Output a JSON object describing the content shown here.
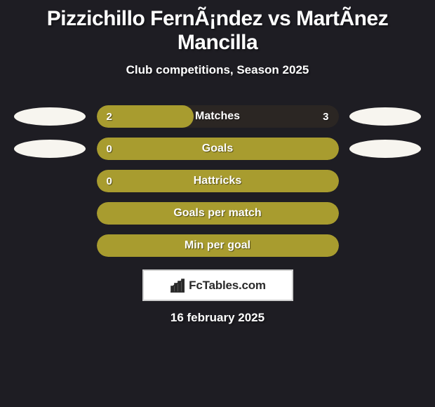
{
  "background_color": "#1e1d23",
  "text_color": "#ffffff",
  "title": "Pizzichillo FernÃ¡ndez vs MartÃ­nez Mancilla",
  "subtitle": "Club competitions, Season 2025",
  "accent_color": "#a89c2f",
  "bar_track_color": "#2b2623",
  "ellipse_color": "#f7f5ef",
  "border_color": "#cfcfcf",
  "bars": [
    {
      "label": "Matches",
      "left_value": "2",
      "right_value": "3",
      "fill_fraction": 0.4,
      "show_left_ellipse": true,
      "show_right_ellipse": true
    },
    {
      "label": "Goals",
      "left_value": "0",
      "right_value": "",
      "fill_fraction": 1.0,
      "show_left_ellipse": true,
      "show_right_ellipse": true
    },
    {
      "label": "Hattricks",
      "left_value": "0",
      "right_value": "",
      "fill_fraction": 1.0,
      "show_left_ellipse": false,
      "show_right_ellipse": false
    },
    {
      "label": "Goals per match",
      "left_value": "",
      "right_value": "",
      "fill_fraction": 1.0,
      "show_left_ellipse": false,
      "show_right_ellipse": false
    },
    {
      "label": "Min per goal",
      "left_value": "",
      "right_value": "",
      "fill_fraction": 1.0,
      "show_left_ellipse": false,
      "show_right_ellipse": false
    }
  ],
  "brand_text": "FcTables.com",
  "date_text": "16 february 2025"
}
